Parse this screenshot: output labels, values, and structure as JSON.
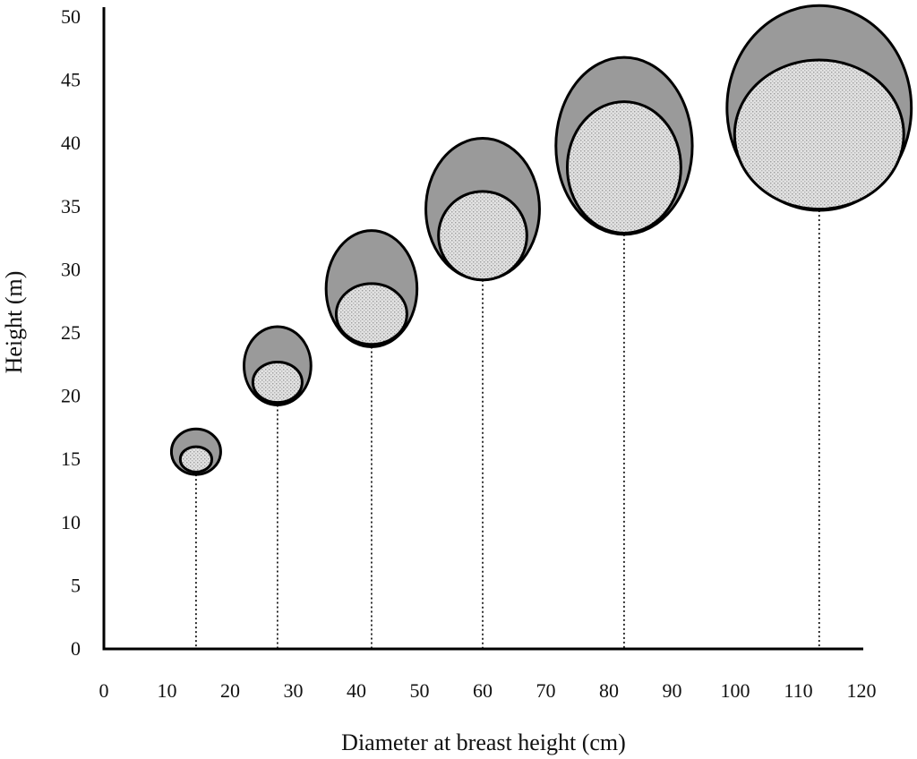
{
  "chart_data": {
    "type": "scatter",
    "subtype": "nested-ellipse crown diagram",
    "xlabel": "Diameter at breast height (cm)",
    "ylabel": "Height (m)",
    "xlim": [
      0,
      120
    ],
    "ylim": [
      0,
      50
    ],
    "xticks": [
      0,
      10,
      20,
      30,
      40,
      50,
      60,
      70,
      80,
      90,
      100,
      110,
      120
    ],
    "yticks": [
      0,
      5,
      10,
      15,
      20,
      25,
      30,
      35,
      40,
      45,
      50
    ],
    "grid": false,
    "legend": "none",
    "colors": {
      "outer_crown": "#9a9a9a",
      "inner_crown": "#dcdcdc",
      "stem": "#000000"
    },
    "trees": [
      {
        "dbh": 15,
        "outer": {
          "cx": 14.6,
          "cy": 15.6,
          "rx": 3.9,
          "ry": 1.8
        },
        "inner": {
          "cx": 14.6,
          "cy": 15.0,
          "rx": 2.5,
          "ry": 1.0
        }
      },
      {
        "dbh": 27.5,
        "outer": {
          "cx": 27.5,
          "cy": 22.4,
          "rx": 5.3,
          "ry": 3.1
        },
        "inner": {
          "cx": 27.5,
          "cy": 21.1,
          "rx": 3.9,
          "ry": 1.6
        }
      },
      {
        "dbh": 42,
        "outer": {
          "cx": 42.4,
          "cy": 28.5,
          "rx": 7.2,
          "ry": 4.6
        },
        "inner": {
          "cx": 42.4,
          "cy": 26.5,
          "rx": 5.6,
          "ry": 2.4
        }
      },
      {
        "dbh": 60,
        "outer": {
          "cx": 60.0,
          "cy": 34.8,
          "rx": 9.0,
          "ry": 5.6
        },
        "inner": {
          "cx": 60.0,
          "cy": 32.7,
          "rx": 7.0,
          "ry": 3.5
        }
      },
      {
        "dbh": 82,
        "outer": {
          "cx": 82.4,
          "cy": 39.8,
          "rx": 10.8,
          "ry": 7.0
        },
        "inner": {
          "cx": 82.4,
          "cy": 38.1,
          "rx": 9.0,
          "ry": 5.2
        }
      },
      {
        "dbh": 113,
        "outer": {
          "cx": 113.3,
          "cy": 42.8,
          "rx": 14.6,
          "ry": 8.1
        },
        "inner": {
          "cx": 113.3,
          "cy": 40.7,
          "rx": 13.4,
          "ry": 5.9
        }
      }
    ]
  }
}
